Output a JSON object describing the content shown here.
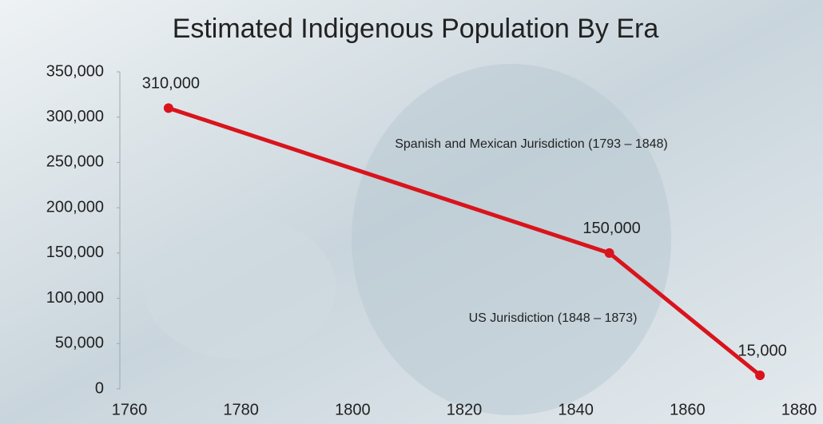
{
  "chart_data": {
    "type": "line",
    "title": "Estimated Indigenous Population By Era",
    "x": [
      1767,
      1846,
      1873
    ],
    "values": [
      310000,
      150000,
      15000
    ],
    "value_labels": [
      "310,000",
      "150,000",
      "15,000"
    ],
    "color": "#d9141c",
    "xlim": [
      1760,
      1880
    ],
    "xticks": [
      1760,
      1780,
      1800,
      1820,
      1840,
      1860,
      1880
    ],
    "ylim": [
      0,
      350000
    ],
    "yticks": [
      0,
      {
        "value": 50000,
        "label": "50,000"
      },
      {
        "value": 100000,
        "label": "100,000"
      },
      {
        "value": 150000,
        "label": "150,000"
      },
      {
        "value": 200000,
        "label": "200,000"
      },
      {
        "value": 250000,
        "label": "250,000"
      },
      {
        "value": 300000,
        "label": "300,000"
      },
      {
        "value": 350000,
        "label": "350,000"
      }
    ],
    "annotations": [
      "Spanish and Mexican Jurisdiction (1793 – 1848)",
      "US Jurisdiction (1848 – 1873)"
    ]
  }
}
